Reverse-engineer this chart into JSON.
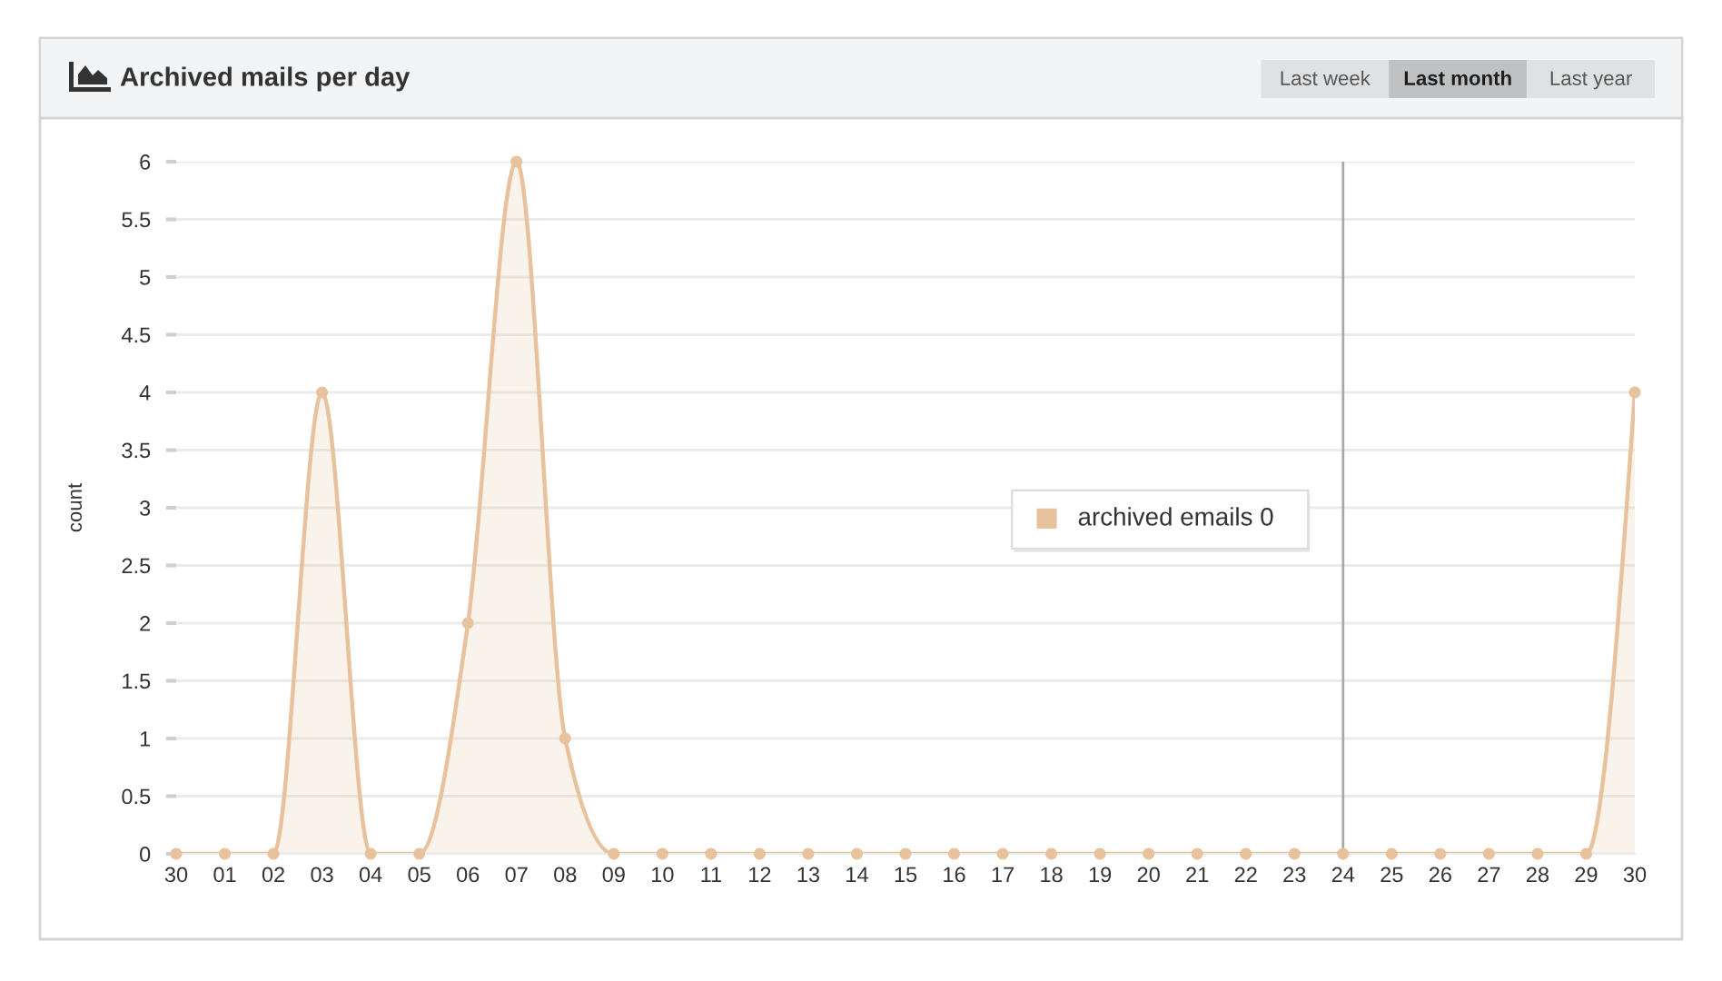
{
  "chart_data": {
    "type": "area",
    "title": "Archived mails per day",
    "ylabel": "count",
    "categories": [
      "30",
      "01",
      "02",
      "03",
      "04",
      "05",
      "06",
      "07",
      "08",
      "09",
      "10",
      "11",
      "12",
      "13",
      "14",
      "15",
      "16",
      "17",
      "18",
      "19",
      "20",
      "21",
      "22",
      "23",
      "24",
      "25",
      "26",
      "27",
      "28",
      "29",
      "30"
    ],
    "series": [
      {
        "color": "#e8c19d",
        "values": [
          0,
          0,
          0,
          4,
          0,
          0,
          2,
          6,
          1,
          0,
          0,
          0,
          0,
          0,
          0,
          0,
          0,
          0,
          0,
          0,
          0,
          0,
          0,
          0,
          0,
          0,
          0,
          0,
          0,
          0,
          4
        ]
      }
    ],
    "ylim": [
      0,
      6
    ],
    "yticks": [
      0,
      0.5,
      1,
      1.5,
      2,
      2.5,
      3,
      3.5,
      4,
      4.5,
      5,
      5.5,
      6
    ],
    "grid": "y",
    "marker": "circle",
    "ref_lines": [
      {
        "axis": "x",
        "value": "24",
        "color": "#a8a8a8"
      }
    ],
    "annotations": [
      "Last week",
      "Last month",
      "Last year",
      "archived emails 0"
    ]
  }
}
